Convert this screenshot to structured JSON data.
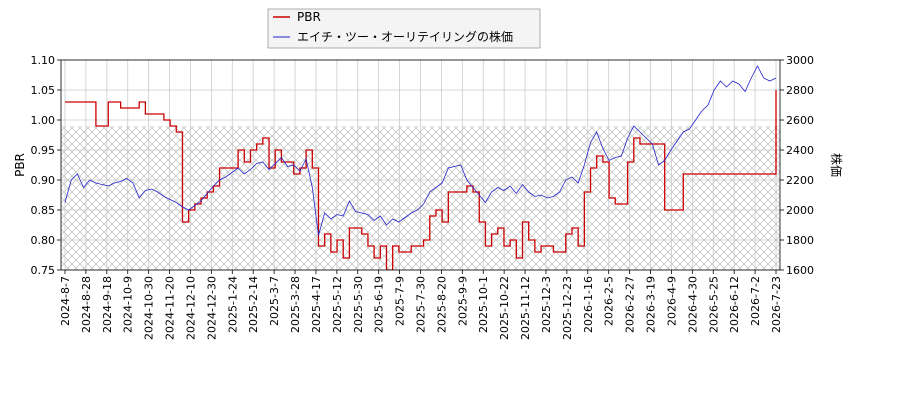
{
  "chart_data": {
    "type": "line",
    "title": "",
    "xlabel": "",
    "ylabel_left": "PBR",
    "ylabel_right": "株価",
    "ylim_left": [
      0.75,
      1.1
    ],
    "ylim_right": [
      1600,
      3000
    ],
    "y_ticks_left": [
      "0.75",
      "0.80",
      "0.85",
      "0.90",
      "0.95",
      "1.00",
      "1.05",
      "1.10"
    ],
    "y_ticks_right": [
      "1600",
      "1800",
      "2000",
      "2200",
      "2400",
      "2600",
      "2800",
      "3000"
    ],
    "x_ticks": [
      "2024-8-7",
      "2024-8-28",
      "2024-9-18",
      "2024-10-9",
      "2024-10-30",
      "2024-11-20",
      "2024-12-10",
      "2024-12-30",
      "2025-1-24",
      "2025-2-14",
      "2025-3-7",
      "2025-3-28",
      "2025-4-17",
      "2025-5-12",
      "2025-5-30",
      "2025-6-19",
      "2025-7-9",
      "2025-7-30",
      "2025-8-20",
      "2025-9-9",
      "2025-10-1",
      "2025-10-22",
      "2025-11-12",
      "2025-12-3",
      "2025-12-23",
      "2026-1-16",
      "2026-2-5",
      "2026-2-27",
      "2026-3-19",
      "2026-4-9",
      "2026-4-30",
      "2026-5-25",
      "2026-6-12",
      "2026-7-2",
      "2026-7-23"
    ],
    "grid": true,
    "legend_position": "top-center",
    "hatched_band_right": [
      1600,
      2560
    ],
    "colors": {
      "pbr": "#cc0000",
      "price": "#2222cc",
      "grid": "#cccccc",
      "hatch": "#aaaaaa"
    },
    "series": [
      {
        "name": "PBR",
        "axis": "left",
        "values": [
          [
            0,
            1.03
          ],
          [
            4,
            1.03
          ],
          [
            5,
            0.99
          ],
          [
            6,
            0.99
          ],
          [
            7,
            1.03
          ],
          [
            8,
            1.03
          ],
          [
            9,
            1.02
          ],
          [
            11,
            1.02
          ],
          [
            12,
            1.03
          ],
          [
            13,
            1.01
          ],
          [
            15,
            1.01
          ],
          [
            16,
            1.0
          ],
          [
            17,
            0.99
          ],
          [
            18,
            0.98
          ],
          [
            19,
            0.83
          ],
          [
            20,
            0.85
          ],
          [
            21,
            0.86
          ],
          [
            22,
            0.87
          ],
          [
            23,
            0.88
          ],
          [
            24,
            0.89
          ],
          [
            25,
            0.92
          ],
          [
            27,
            0.92
          ],
          [
            28,
            0.95
          ],
          [
            29,
            0.93
          ],
          [
            30,
            0.95
          ],
          [
            31,
            0.96
          ],
          [
            32,
            0.97
          ],
          [
            33,
            0.92
          ],
          [
            34,
            0.95
          ],
          [
            35,
            0.93
          ],
          [
            36,
            0.93
          ],
          [
            37,
            0.91
          ],
          [
            38,
            0.92
          ],
          [
            39,
            0.95
          ],
          [
            40,
            0.92
          ],
          [
            41,
            0.79
          ],
          [
            42,
            0.81
          ],
          [
            43,
            0.78
          ],
          [
            44,
            0.8
          ],
          [
            45,
            0.77
          ],
          [
            46,
            0.82
          ],
          [
            47,
            0.82
          ],
          [
            48,
            0.81
          ],
          [
            49,
            0.79
          ],
          [
            50,
            0.77
          ],
          [
            51,
            0.79
          ],
          [
            52,
            0.75
          ],
          [
            53,
            0.79
          ],
          [
            54,
            0.78
          ],
          [
            55,
            0.78
          ],
          [
            56,
            0.79
          ],
          [
            57,
            0.79
          ],
          [
            58,
            0.8
          ],
          [
            59,
            0.84
          ],
          [
            60,
            0.85
          ],
          [
            61,
            0.83
          ],
          [
            62,
            0.88
          ],
          [
            64,
            0.88
          ],
          [
            65,
            0.89
          ],
          [
            66,
            0.88
          ],
          [
            67,
            0.83
          ],
          [
            68,
            0.79
          ],
          [
            69,
            0.81
          ],
          [
            70,
            0.82
          ],
          [
            71,
            0.79
          ],
          [
            72,
            0.8
          ],
          [
            73,
            0.77
          ],
          [
            74,
            0.83
          ],
          [
            75,
            0.8
          ],
          [
            76,
            0.78
          ],
          [
            77,
            0.79
          ],
          [
            78,
            0.79
          ],
          [
            79,
            0.78
          ],
          [
            80,
            0.78
          ],
          [
            81,
            0.81
          ],
          [
            82,
            0.82
          ],
          [
            83,
            0.79
          ],
          [
            84,
            0.88
          ],
          [
            85,
            0.92
          ],
          [
            86,
            0.94
          ],
          [
            87,
            0.93
          ],
          [
            88,
            0.87
          ],
          [
            89,
            0.86
          ],
          [
            90,
            0.86
          ],
          [
            91,
            0.93
          ],
          [
            92,
            0.97
          ],
          [
            93,
            0.96
          ],
          [
            94,
            0.96
          ],
          [
            95,
            0.96
          ],
          [
            96,
            0.96
          ],
          [
            97,
            0.85
          ],
          [
            98,
            0.85
          ],
          [
            99,
            0.85
          ],
          [
            100,
            0.91
          ],
          [
            107,
            0.91
          ],
          [
            114,
            0.91
          ],
          [
            115,
            1.05
          ]
        ]
      },
      {
        "name": "エイチ・ツー・オーリテイリングの株価",
        "axis": "right",
        "values": [
          [
            0,
            2050
          ],
          [
            1,
            2200
          ],
          [
            2,
            2240
          ],
          [
            3,
            2150
          ],
          [
            4,
            2200
          ],
          [
            5,
            2180
          ],
          [
            6,
            2170
          ],
          [
            7,
            2160
          ],
          [
            8,
            2180
          ],
          [
            9,
            2190
          ],
          [
            10,
            2210
          ],
          [
            11,
            2180
          ],
          [
            12,
            2080
          ],
          [
            13,
            2130
          ],
          [
            14,
            2140
          ],
          [
            15,
            2120
          ],
          [
            16,
            2090
          ],
          [
            17,
            2070
          ],
          [
            18,
            2050
          ],
          [
            19,
            2020
          ],
          [
            20,
            2000
          ],
          [
            21,
            2030
          ],
          [
            22,
            2060
          ],
          [
            23,
            2110
          ],
          [
            24,
            2160
          ],
          [
            25,
            2200
          ],
          [
            26,
            2220
          ],
          [
            27,
            2250
          ],
          [
            28,
            2280
          ],
          [
            29,
            2240
          ],
          [
            30,
            2270
          ],
          [
            31,
            2310
          ],
          [
            32,
            2320
          ],
          [
            33,
            2270
          ],
          [
            34,
            2310
          ],
          [
            35,
            2350
          ],
          [
            36,
            2290
          ],
          [
            37,
            2300
          ],
          [
            38,
            2260
          ],
          [
            39,
            2340
          ],
          [
            40,
            2150
          ],
          [
            41,
            1830
          ],
          [
            42,
            1980
          ],
          [
            43,
            1940
          ],
          [
            44,
            1970
          ],
          [
            45,
            1960
          ],
          [
            46,
            2060
          ],
          [
            47,
            1990
          ],
          [
            48,
            1980
          ],
          [
            49,
            1970
          ],
          [
            50,
            1930
          ],
          [
            51,
            1960
          ],
          [
            52,
            1900
          ],
          [
            53,
            1940
          ],
          [
            54,
            1920
          ],
          [
            55,
            1950
          ],
          [
            56,
            1980
          ],
          [
            57,
            2000
          ],
          [
            58,
            2040
          ],
          [
            59,
            2120
          ],
          [
            60,
            2150
          ],
          [
            61,
            2180
          ],
          [
            62,
            2280
          ],
          [
            64,
            2300
          ],
          [
            65,
            2200
          ],
          [
            66,
            2150
          ],
          [
            67,
            2100
          ],
          [
            68,
            2050
          ],
          [
            69,
            2120
          ],
          [
            70,
            2150
          ],
          [
            71,
            2130
          ],
          [
            72,
            2160
          ],
          [
            73,
            2110
          ],
          [
            74,
            2170
          ],
          [
            75,
            2120
          ],
          [
            76,
            2090
          ],
          [
            77,
            2100
          ],
          [
            78,
            2080
          ],
          [
            79,
            2090
          ],
          [
            80,
            2120
          ],
          [
            81,
            2200
          ],
          [
            82,
            2220
          ],
          [
            83,
            2180
          ],
          [
            84,
            2300
          ],
          [
            85,
            2450
          ],
          [
            86,
            2520
          ],
          [
            87,
            2410
          ],
          [
            88,
            2330
          ],
          [
            89,
            2350
          ],
          [
            90,
            2360
          ],
          [
            91,
            2480
          ],
          [
            92,
            2560
          ],
          [
            93,
            2520
          ],
          [
            94,
            2480
          ],
          [
            95,
            2440
          ],
          [
            96,
            2300
          ],
          [
            97,
            2330
          ],
          [
            98,
            2400
          ],
          [
            99,
            2460
          ],
          [
            100,
            2520
          ],
          [
            101,
            2540
          ],
          [
            102,
            2600
          ],
          [
            103,
            2660
          ],
          [
            104,
            2700
          ],
          [
            105,
            2800
          ],
          [
            106,
            2860
          ],
          [
            107,
            2820
          ],
          [
            108,
            2860
          ],
          [
            109,
            2840
          ],
          [
            110,
            2790
          ],
          [
            111,
            2880
          ],
          [
            112,
            2960
          ],
          [
            113,
            2880
          ],
          [
            114,
            2860
          ],
          [
            115,
            2880
          ]
        ]
      }
    ]
  }
}
